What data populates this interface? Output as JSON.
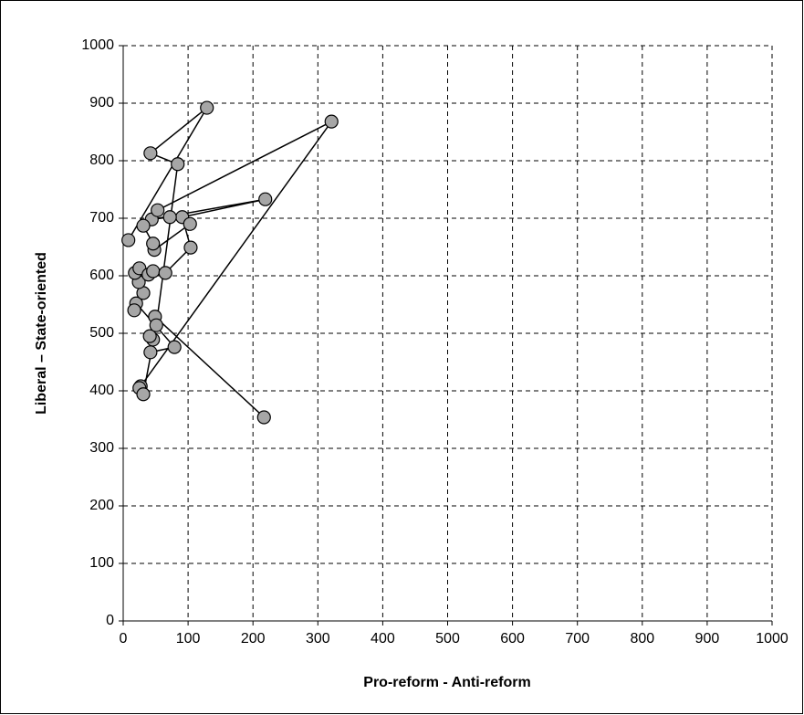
{
  "chart_data": {
    "type": "line",
    "x": [
      217,
      49,
      46,
      41,
      42,
      79,
      20,
      17,
      31,
      24,
      18,
      25,
      39,
      46,
      65,
      104,
      91,
      219,
      44,
      72,
      103,
      48,
      46,
      31,
      53,
      321,
      27,
      25,
      31,
      51,
      84,
      42,
      129,
      8
    ],
    "series": [
      {
        "name": null,
        "color": "#a6a6a6",
        "values": [
          354,
          529,
          489,
          495,
          467,
          476,
          552,
          540,
          570,
          589,
          605,
          613,
          602,
          608,
          605,
          649,
          702,
          733,
          698,
          702,
          690,
          645,
          656,
          687,
          714,
          868,
          408,
          405,
          394,
          514,
          794,
          813,
          892,
          662
        ]
      }
    ],
    "x_label": "Pro-reform  -  Anti-reform",
    "y_label": "Liberal  –  State-oriented",
    "xlim": [
      0,
      1000
    ],
    "ylim": [
      0,
      1000
    ],
    "xticks": [
      0,
      100,
      200,
      300,
      400,
      500,
      600,
      700,
      800,
      900,
      1000
    ],
    "yticks": [
      0,
      100,
      200,
      300,
      400,
      500,
      600,
      700,
      800,
      900,
      1000
    ],
    "grid": true
  }
}
